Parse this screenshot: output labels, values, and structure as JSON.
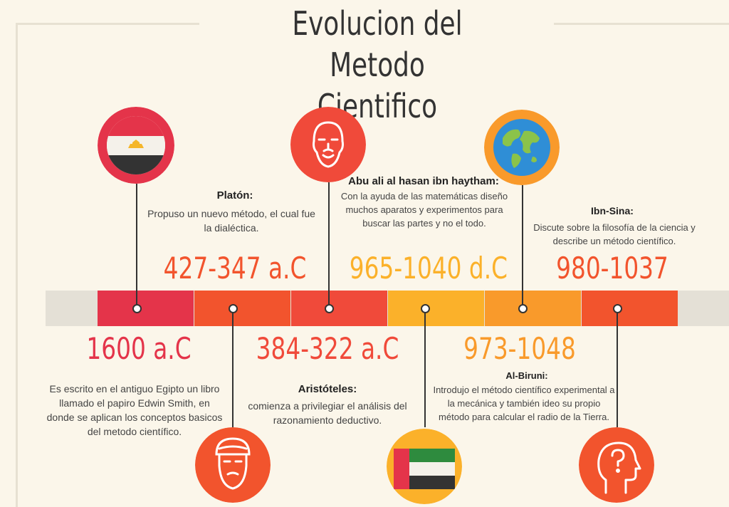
{
  "title": {
    "line1": "Evolucion del Metodo",
    "line2": "Cientifico"
  },
  "colors": {
    "background": "#fbf6ea",
    "red": "#e4344a",
    "orange_red": "#f2542d",
    "coral": "#f15a3c",
    "yellow": "#fbb12a",
    "orange": "#f99a2b",
    "dark": "#333333"
  },
  "events": [
    {
      "year": "1600 a.C",
      "name": "",
      "description": "Es escrito en el antiguo Egipto un libro llamado el papiro Edwin Smith, en donde se aplican los conceptos basicos del metodo científico.",
      "icon": "egypt-flag-icon"
    },
    {
      "year": "427-347 a.C",
      "name": "Platón:",
      "description": "Propuso un nuevo método, el cual fue la dialéctica.",
      "icon": "bearded-man-turban-icon"
    },
    {
      "year": "384-322 a.C",
      "name": "Aristóteles:",
      "description": "comienza a privilegiar el análisis del razonamiento deductivo.",
      "icon": "bearded-philosopher-icon"
    },
    {
      "year": "965-1040 d.C",
      "name": "Abu ali al hasan ibn haytham:",
      "description": "Con la ayuda de las matemáticas diseño muchos aparatos y experimentos para buscar las partes y no el todo.",
      "icon": "uae-flag-icon"
    },
    {
      "year": "973-1048",
      "name": "Al-Biruni:",
      "description": "Introdujo el método científico experimental a la mecánica y también ideo su propio método para calcular el radio de la Tierra.",
      "icon": "globe-icon"
    },
    {
      "year": "980-1037",
      "name": "Ibn-Sina:",
      "description": "Discute sobre la filosofía de la ciencia y describe un método científico.",
      "icon": "head-question-icon"
    }
  ]
}
